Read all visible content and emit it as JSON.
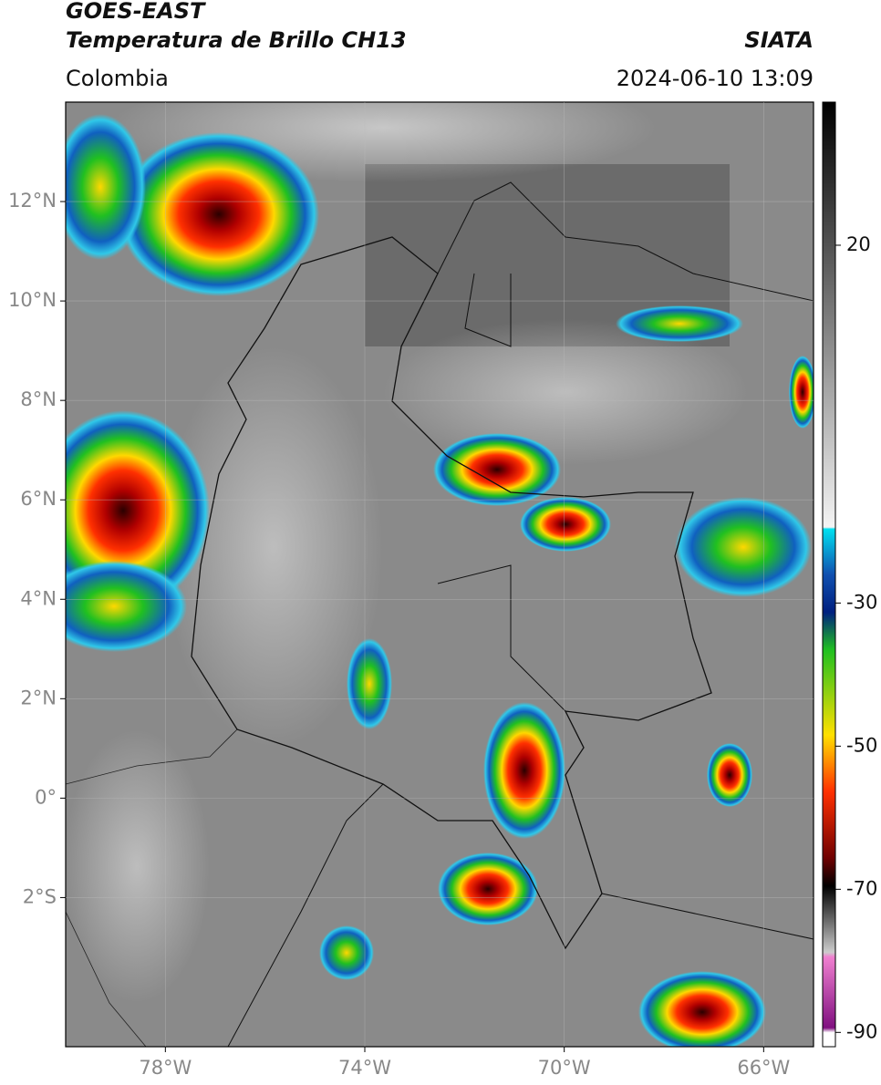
{
  "header": {
    "title": "GOES-EAST",
    "subtitle": "Temperatura de Brillo CH13",
    "agency": "SIATA",
    "region": "Colombia",
    "datetime": "2024-06-10 13:09"
  },
  "map": {
    "lonlim": [
      -80,
      -65
    ],
    "latlim": [
      -5,
      14
    ],
    "lonticks": [
      {
        "value": -78,
        "label": "78°W"
      },
      {
        "value": -74,
        "label": "74°W"
      },
      {
        "value": -70,
        "label": "70°W"
      },
      {
        "value": -66,
        "label": "66°W"
      }
    ],
    "latticks": [
      {
        "value": 12,
        "label": "12°N"
      },
      {
        "value": 10,
        "label": "10°N"
      },
      {
        "value": 8,
        "label": "8°N"
      },
      {
        "value": 6,
        "label": "6°N"
      },
      {
        "value": 4,
        "label": "4°N"
      },
      {
        "value": 2,
        "label": "2°N"
      },
      {
        "value": 0,
        "label": "0°"
      },
      {
        "value": -2,
        "label": "2°S"
      }
    ],
    "grid": true
  },
  "colorbar": {
    "lim": [
      40,
      -92
    ],
    "ticks": [
      20,
      -30,
      -50,
      -70,
      -90
    ]
  }
}
